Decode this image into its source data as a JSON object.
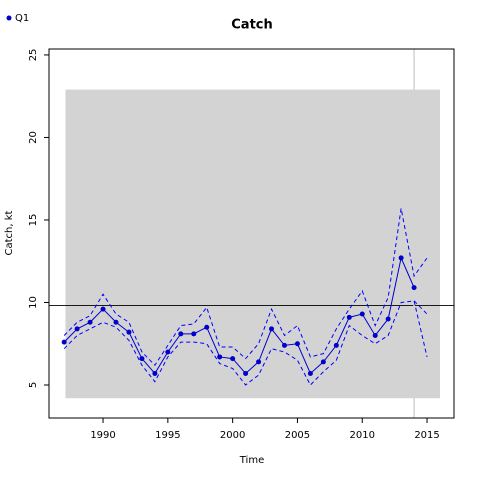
{
  "chart_data": {
    "type": "line",
    "title": "Catch",
    "x_label": "Time",
    "y_label": "Catch, kt",
    "x": [
      1987,
      1988,
      1989,
      1990,
      1991,
      1992,
      1993,
      1994,
      1995,
      1996,
      1997,
      1998,
      1999,
      2000,
      2001,
      2002,
      2003,
      2004,
      2005,
      2006,
      2007,
      2008,
      2009,
      2010,
      2011,
      2012,
      2013,
      2014,
      2015
    ],
    "series": [
      {
        "name": "Q1",
        "color": "#0000cd",
        "style": "solid",
        "markers": true,
        "values": [
          7.6,
          8.4,
          8.8,
          9.6,
          8.8,
          8.2,
          6.6,
          5.7,
          7.0,
          8.1,
          8.1,
          8.5,
          6.7,
          6.6,
          5.7,
          6.4,
          8.4,
          7.4,
          7.5,
          5.7,
          6.4,
          7.4,
          9.1,
          9.3,
          8.0,
          9.0,
          12.7,
          10.9,
          null
        ]
      },
      {
        "color": "#0000ff",
        "style": "dashed",
        "markers": false,
        "values": [
          8.0,
          8.8,
          9.2,
          10.5,
          9.3,
          8.8,
          7.0,
          6.2,
          7.4,
          8.6,
          8.7,
          9.7,
          7.3,
          7.3,
          6.6,
          7.5,
          9.6,
          8.0,
          8.6,
          6.7,
          6.9,
          8.4,
          9.6,
          10.7,
          8.6,
          10.3,
          15.7,
          11.6,
          12.7
        ]
      },
      {
        "color": "#0000ff",
        "style": "dashed",
        "markers": false,
        "values": [
          7.2,
          8.0,
          8.4,
          8.8,
          8.5,
          7.7,
          6.2,
          5.2,
          6.7,
          7.6,
          7.6,
          7.5,
          6.3,
          6.0,
          5.0,
          5.6,
          7.2,
          7.0,
          6.5,
          5.0,
          5.8,
          6.5,
          8.6,
          8.0,
          7.5,
          8.0,
          10.0,
          10.1,
          6.7
        ]
      },
      {
        "color": "#0000ff",
        "style": "dashed",
        "markers": false,
        "values": [
          null,
          null,
          null,
          null,
          null,
          null,
          null,
          null,
          null,
          null,
          null,
          null,
          null,
          null,
          null,
          null,
          null,
          null,
          null,
          null,
          null,
          null,
          null,
          null,
          null,
          null,
          null,
          10.1,
          9.3
        ]
      }
    ],
    "shade": {
      "color": "#d3d3d3",
      "x": [
        1987.1,
        2016
      ],
      "y": [
        4.2,
        22.9
      ]
    },
    "hline": 9.82,
    "vline": 2014,
    "xlim": [
      1985.83,
      2017.08
    ],
    "ylim": [
      3,
      25.36
    ],
    "xticks": [
      1990,
      1995,
      2000,
      2005,
      2010,
      2015
    ],
    "yticks": [
      5,
      10,
      15,
      20,
      25
    ],
    "legend": "top-left"
  }
}
